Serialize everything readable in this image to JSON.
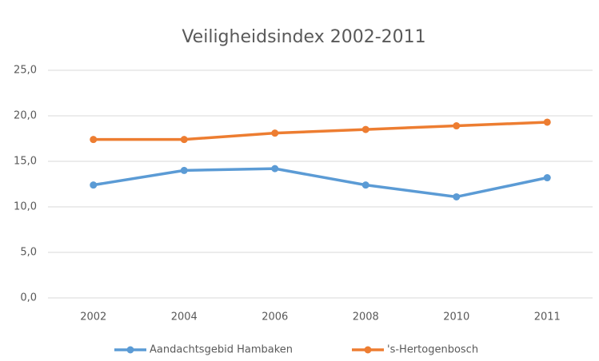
{
  "chart_data": {
    "type": "line",
    "title": "Veiligheidsindex 2002-2011",
    "categories": [
      "2002",
      "2004",
      "2006",
      "2008",
      "2010",
      "2011"
    ],
    "series": [
      {
        "name": "Aandachtsgebid Hambaken",
        "color": "#5b9bd5",
        "values": [
          12.4,
          14.0,
          14.2,
          12.4,
          11.1,
          13.2
        ]
      },
      {
        "name": "'s-Hertogenbosch",
        "color": "#ed7d31",
        "values": [
          17.4,
          17.4,
          18.1,
          18.5,
          18.9,
          19.3
        ]
      }
    ],
    "ylim": [
      0,
      25
    ],
    "yticks": [
      {
        "value": 0,
        "label": "0,0"
      },
      {
        "value": 5,
        "label": "5,0"
      },
      {
        "value": 10,
        "label": "10,0"
      },
      {
        "value": 15,
        "label": "15,0"
      },
      {
        "value": 20,
        "label": "20,0"
      },
      {
        "value": 25,
        "label": "25,0"
      }
    ],
    "grid": true,
    "legend": "bottom"
  }
}
